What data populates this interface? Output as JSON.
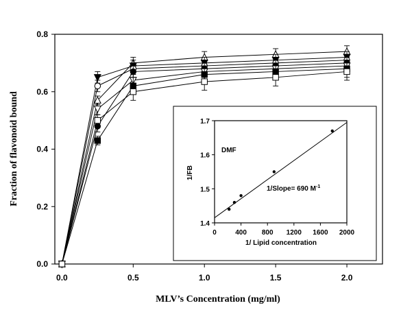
{
  "chart_data": [
    {
      "type": "line",
      "title": "",
      "xlabel": "MLV’s Concentration (mg/ml)",
      "ylabel": "Fraction of flavonoid bound",
      "xlim": [
        -0.05,
        2.25
      ],
      "ylim": [
        0.0,
        0.8
      ],
      "xticks": [
        "0.0",
        "0.5",
        "1.0",
        "1.5",
        "2.0"
      ],
      "yticks": [
        "0.0",
        "0.2",
        "0.4",
        "0.6",
        "0.8"
      ],
      "grid": false,
      "x": [
        0,
        0.25,
        0.5,
        1.0,
        1.5,
        2.0
      ],
      "series": [
        {
          "marker": "triangle-up-open",
          "values": [
            0.0,
            0.57,
            0.7,
            0.72,
            0.73,
            0.74
          ],
          "err": [
            0,
            0.015,
            0.02,
            0.02,
            0.02,
            0.02
          ]
        },
        {
          "marker": "triangle-down-filled",
          "values": [
            0.0,
            0.65,
            0.69,
            0.7,
            0.71,
            0.72
          ],
          "err": [
            0,
            0.02,
            0.02,
            0.02,
            0.02,
            0.02
          ]
        },
        {
          "marker": "circle-open",
          "values": [
            0.0,
            0.62,
            0.68,
            0.69,
            0.7,
            0.71
          ],
          "err": [
            0,
            0.02,
            0.02,
            0.02,
            0.02,
            0.02
          ]
        },
        {
          "marker": "circle-filled",
          "values": [
            0.0,
            0.48,
            0.67,
            0.68,
            0.69,
            0.7
          ],
          "err": [
            0,
            0.02,
            0.02,
            0.02,
            0.02,
            0.02
          ]
        },
        {
          "marker": "triangle-down-open",
          "values": [
            0.0,
            0.54,
            0.64,
            0.67,
            0.68,
            0.69
          ],
          "err": [
            0,
            0.02,
            0.02,
            0.02,
            0.02,
            0.02
          ]
        },
        {
          "marker": "square-filled",
          "values": [
            0.0,
            0.43,
            0.62,
            0.66,
            0.67,
            0.68
          ],
          "err": [
            0,
            0.015,
            0.03,
            0.03,
            0.03,
            0.03
          ]
        },
        {
          "marker": "square-open",
          "values": [
            0.0,
            0.5,
            0.6,
            0.635,
            0.65,
            0.67
          ],
          "err": [
            0,
            0.02,
            0.03,
            0.03,
            0.03,
            0.03
          ]
        }
      ]
    },
    {
      "type": "scatter",
      "title": "",
      "annotation_label": "DMF",
      "slope_label": "1/Slope= 690 M",
      "slope_superscript": "-1",
      "xlabel": "1/ Lipid concentration",
      "ylabel": "1/FB",
      "xlim": [
        0,
        2000
      ],
      "ylim": [
        1.4,
        1.7
      ],
      "xticks": [
        "0",
        "400",
        "800",
        "1200",
        "1600",
        "2000"
      ],
      "yticks": [
        "1.4",
        "1.5",
        "1.6",
        "1.7"
      ],
      "grid": false,
      "points": [
        {
          "x": 220,
          "y": 1.44
        },
        {
          "x": 300,
          "y": 1.46
        },
        {
          "x": 400,
          "y": 1.48
        },
        {
          "x": 900,
          "y": 1.55
        },
        {
          "x": 1780,
          "y": 1.67
        }
      ],
      "fit_line": {
        "x": [
          0,
          2000
        ],
        "y": [
          1.415,
          1.695
        ]
      }
    }
  ]
}
